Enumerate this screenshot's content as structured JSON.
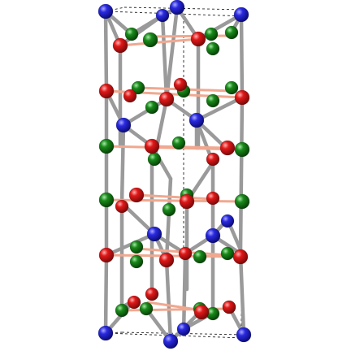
{
  "figure": {
    "background": "#ffffff",
    "atom_colors": {
      "blue": "#1010c8",
      "red": "#d01010",
      "green": "#107a10"
    },
    "bond_colors": {
      "framework": "#9a9a9a",
      "pink": "#f0a890"
    },
    "cell_edge_color": "#222222"
  }
}
